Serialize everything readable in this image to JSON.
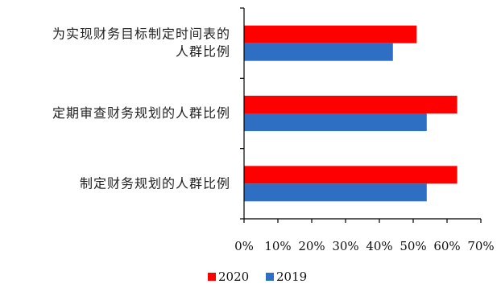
{
  "chart_data": {
    "type": "bar",
    "orientation": "horizontal",
    "categories": [
      [
        "为实现财务目标制定时间表的",
        "人群比例"
      ],
      [
        "定期审查财务规划的人群比例"
      ],
      [
        "制定财务规划的人群比例"
      ]
    ],
    "series": [
      {
        "name": "2020",
        "color": "#ff0000",
        "values": [
          0.51,
          0.63,
          0.63
        ]
      },
      {
        "name": "2019",
        "color": "#2e6fc4",
        "values": [
          0.44,
          0.54,
          0.54
        ]
      }
    ],
    "xlim": [
      0,
      0.7
    ],
    "xticks": [
      0,
      0.1,
      0.2,
      0.3,
      0.4,
      0.5,
      0.6,
      0.7
    ],
    "xtick_labels": [
      "0%",
      "10%",
      "20%",
      "30%",
      "40%",
      "50%",
      "60%",
      "70%"
    ],
    "title": "",
    "xlabel": "",
    "ylabel": "",
    "grid": false,
    "legend_position": "bottom"
  }
}
